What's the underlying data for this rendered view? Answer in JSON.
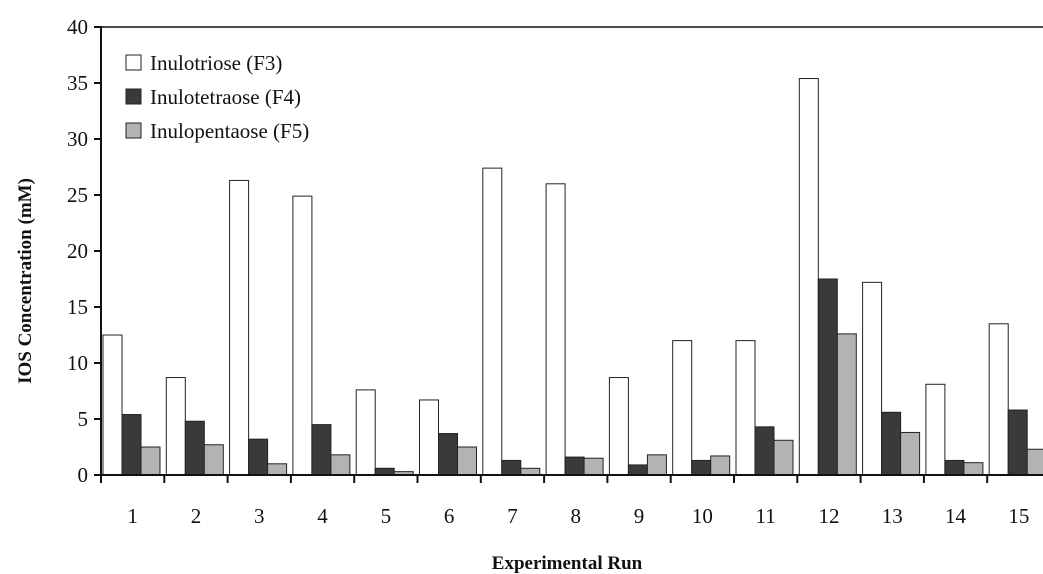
{
  "chart_data": {
    "type": "bar",
    "title": "",
    "xlabel": "Experimental Run",
    "ylabel": "IOS Concentration (mM)",
    "ylim": [
      0,
      40
    ],
    "yticks": [
      0,
      5,
      10,
      15,
      20,
      25,
      30,
      35,
      40
    ],
    "categories": [
      "1",
      "2",
      "3",
      "4",
      "5",
      "6",
      "7",
      "8",
      "9",
      "10",
      "11",
      "12",
      "13",
      "14",
      "15"
    ],
    "series": [
      {
        "name": "Inulotriose (F3)",
        "color": "#ffffff",
        "values": [
          12.5,
          8.7,
          26.3,
          24.9,
          7.6,
          6.7,
          27.4,
          26.0,
          8.7,
          12.0,
          12.0,
          35.4,
          17.2,
          8.1,
          13.5
        ]
      },
      {
        "name": "Inulotetraose (F4)",
        "color": "#3a3a3a",
        "values": [
          5.4,
          4.8,
          3.2,
          4.5,
          0.6,
          3.7,
          1.3,
          1.6,
          0.9,
          1.3,
          4.3,
          17.5,
          5.6,
          1.3,
          5.8
        ]
      },
      {
        "name": "Inulopentaose (F5)",
        "color": "#b3b3b3",
        "values": [
          2.5,
          2.7,
          1.0,
          1.8,
          0.3,
          2.5,
          0.6,
          1.5,
          1.8,
          1.7,
          3.1,
          12.6,
          3.8,
          1.1,
          2.3
        ]
      }
    ],
    "legend": "top-left",
    "grid": false
  }
}
